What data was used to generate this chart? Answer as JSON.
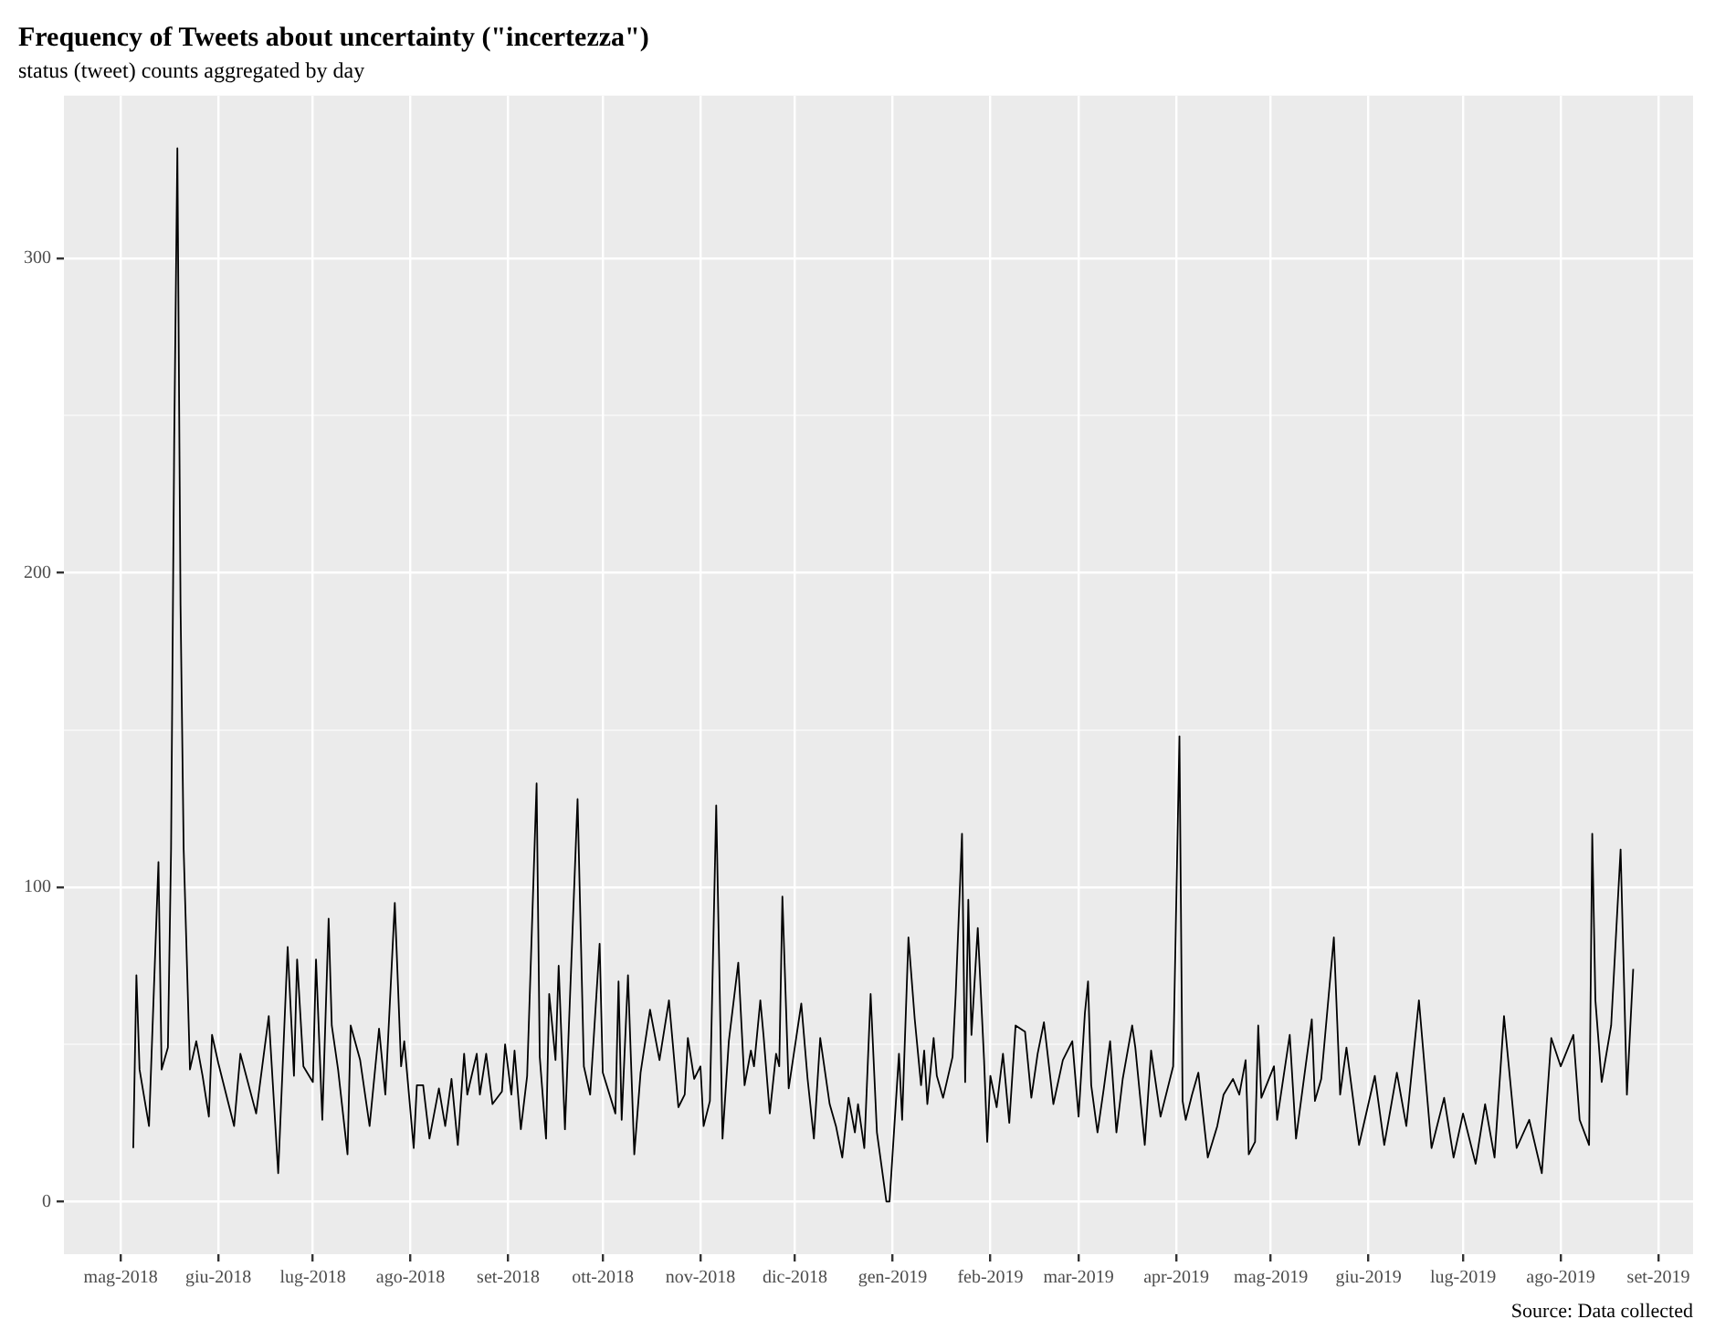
{
  "chart_data": {
    "type": "line",
    "title": "Frequency of Tweets about uncertainty (\"incertezza\")",
    "subtitle": "status (tweet) counts aggregated by day",
    "annotations": [
      "Source: Data collected"
    ],
    "x": [
      "2018-05-05",
      "2018-05-06",
      "2018-05-07",
      "2018-05-10",
      "2018-05-13",
      "2018-05-14",
      "2018-05-16",
      "2018-05-17",
      "2018-05-18",
      "2018-05-19",
      "2018-05-20",
      "2018-05-21",
      "2018-05-23",
      "2018-05-25",
      "2018-05-27",
      "2018-05-29",
      "2018-05-30",
      "2018-06-01",
      "2018-06-06",
      "2018-06-08",
      "2018-06-13",
      "2018-06-17",
      "2018-06-20",
      "2018-06-23",
      "2018-06-25",
      "2018-06-26",
      "2018-06-28",
      "2018-07-01",
      "2018-07-02",
      "2018-07-04",
      "2018-07-06",
      "2018-07-07",
      "2018-07-09",
      "2018-07-12",
      "2018-07-13",
      "2018-07-16",
      "2018-07-19",
      "2018-07-22",
      "2018-07-24",
      "2018-07-27",
      "2018-07-29",
      "2018-07-30",
      "2018-08-02",
      "2018-08-03",
      "2018-08-05",
      "2018-08-07",
      "2018-08-10",
      "2018-08-12",
      "2018-08-14",
      "2018-08-16",
      "2018-08-18",
      "2018-08-19",
      "2018-08-22",
      "2018-08-23",
      "2018-08-25",
      "2018-08-27",
      "2018-08-30",
      "2018-08-31",
      "2018-09-02",
      "2018-09-03",
      "2018-09-05",
      "2018-09-07",
      "2018-09-10",
      "2018-09-11",
      "2018-09-13",
      "2018-09-14",
      "2018-09-16",
      "2018-09-17",
      "2018-09-19",
      "2018-09-23",
      "2018-09-25",
      "2018-09-27",
      "2018-09-30",
      "2018-10-01",
      "2018-10-05",
      "2018-10-06",
      "2018-10-07",
      "2018-10-09",
      "2018-10-11",
      "2018-10-13",
      "2018-10-16",
      "2018-10-19",
      "2018-10-22",
      "2018-10-25",
      "2018-10-27",
      "2018-10-28",
      "2018-10-30",
      "2018-11-01",
      "2018-11-02",
      "2018-11-04",
      "2018-11-06",
      "2018-11-08",
      "2018-11-10",
      "2018-11-13",
      "2018-11-15",
      "2018-11-17",
      "2018-11-18",
      "2018-11-20",
      "2018-11-21",
      "2018-11-23",
      "2018-11-25",
      "2018-11-26",
      "2018-11-27",
      "2018-11-29",
      "2018-12-03",
      "2018-12-05",
      "2018-12-07",
      "2018-12-09",
      "2018-12-12",
      "2018-12-14",
      "2018-12-16",
      "2018-12-18",
      "2018-12-20",
      "2018-12-21",
      "2018-12-23",
      "2018-12-25",
      "2018-12-27",
      "2018-12-30",
      "2018-12-31",
      "2019-01-03",
      "2019-01-04",
      "2019-01-06",
      "2019-01-08",
      "2019-01-10",
      "2019-01-11",
      "2019-01-12",
      "2019-01-14",
      "2019-01-15",
      "2019-01-17",
      "2019-01-20",
      "2019-01-21",
      "2019-01-23",
      "2019-01-24",
      "2019-01-25",
      "2019-01-26",
      "2019-01-28",
      "2019-01-30",
      "2019-01-31",
      "2019-02-01",
      "2019-02-03",
      "2019-02-05",
      "2019-02-07",
      "2019-02-09",
      "2019-02-12",
      "2019-02-14",
      "2019-02-16",
      "2019-02-18",
      "2019-02-21",
      "2019-02-24",
      "2019-02-27",
      "2019-03-01",
      "2019-03-03",
      "2019-03-04",
      "2019-03-05",
      "2019-03-07",
      "2019-03-09",
      "2019-03-11",
      "2019-03-13",
      "2019-03-15",
      "2019-03-18",
      "2019-03-19",
      "2019-03-22",
      "2019-03-24",
      "2019-03-27",
      "2019-03-31",
      "2019-04-02",
      "2019-04-03",
      "2019-04-04",
      "2019-04-06",
      "2019-04-08",
      "2019-04-11",
      "2019-04-14",
      "2019-04-16",
      "2019-04-19",
      "2019-04-21",
      "2019-04-23",
      "2019-04-24",
      "2019-04-26",
      "2019-04-27",
      "2019-04-28",
      "2019-05-02",
      "2019-05-03",
      "2019-05-07",
      "2019-05-09",
      "2019-05-14",
      "2019-05-15",
      "2019-05-17",
      "2019-05-21",
      "2019-05-23",
      "2019-05-25",
      "2019-05-29",
      "2019-06-03",
      "2019-06-06",
      "2019-06-10",
      "2019-06-13",
      "2019-06-17",
      "2019-06-21",
      "2019-06-25",
      "2019-06-28",
      "2019-07-01",
      "2019-07-05",
      "2019-07-08",
      "2019-07-11",
      "2019-07-14",
      "2019-07-18",
      "2019-07-22",
      "2019-07-26",
      "2019-07-29",
      "2019-08-01",
      "2019-08-05",
      "2019-08-07",
      "2019-08-10",
      "2019-08-11",
      "2019-08-12",
      "2019-08-14",
      "2019-08-17",
      "2019-08-20",
      "2019-08-22",
      "2019-08-24"
    ],
    "series": [
      {
        "color": "#000000",
        "values": [
          17,
          72,
          42,
          24,
          108,
          42,
          49,
          112,
          242,
          335,
          190,
          112,
          42,
          51,
          40,
          27,
          53,
          44,
          24,
          47,
          28,
          59,
          9,
          81,
          40,
          77,
          43,
          38,
          77,
          26,
          90,
          56,
          42,
          15,
          56,
          45,
          24,
          55,
          34,
          95,
          43,
          51,
          17,
          37,
          37,
          20,
          36,
          24,
          39,
          18,
          47,
          34,
          47,
          34,
          47,
          31,
          35,
          50,
          34,
          48,
          23,
          40,
          133,
          46,
          20,
          66,
          45,
          75,
          23,
          128,
          43,
          34,
          82,
          41,
          28,
          70,
          26,
          72,
          15,
          41,
          61,
          45,
          64,
          30,
          34,
          52,
          39,
          43,
          24,
          32,
          126,
          20,
          51,
          76,
          37,
          48,
          43,
          64,
          53,
          28,
          47,
          43,
          97,
          36,
          63,
          39,
          20,
          52,
          31,
          24,
          14,
          33,
          22,
          31,
          17,
          66,
          22,
          0,
          0,
          47,
          26,
          84,
          58,
          37,
          48,
          31,
          52,
          40,
          33,
          46,
          66,
          117,
          38,
          96,
          53,
          87,
          45,
          19,
          40,
          30,
          47,
          25,
          56,
          54,
          33,
          47,
          57,
          31,
          45,
          51,
          27,
          60,
          70,
          37,
          22,
          36,
          51,
          22,
          39,
          56,
          49,
          18,
          48,
          27,
          43,
          148,
          32,
          26,
          34,
          41,
          14,
          24,
          34,
          39,
          34,
          45,
          15,
          19,
          56,
          33,
          43,
          26,
          53,
          20,
          58,
          32,
          39,
          84,
          34,
          49,
          18,
          40,
          18,
          41,
          24,
          64,
          17,
          33,
          14,
          28,
          12,
          31,
          14,
          59,
          17,
          26,
          9,
          52,
          43,
          53,
          26,
          18,
          117,
          64,
          38,
          56,
          112,
          34,
          74
        ]
      }
    ],
    "xlim": [
      "2018-04-13",
      "2019-09-12"
    ],
    "xticks": [
      {
        "value": "2018-05-01",
        "label": "mag-2018"
      },
      {
        "value": "2018-06-01",
        "label": "giu-2018"
      },
      {
        "value": "2018-07-01",
        "label": "lug-2018"
      },
      {
        "value": "2018-08-01",
        "label": "ago-2018"
      },
      {
        "value": "2018-09-01",
        "label": "set-2018"
      },
      {
        "value": "2018-10-01",
        "label": "ott-2018"
      },
      {
        "value": "2018-11-01",
        "label": "nov-2018"
      },
      {
        "value": "2018-12-01",
        "label": "dic-2018"
      },
      {
        "value": "2019-01-01",
        "label": "gen-2019"
      },
      {
        "value": "2019-02-01",
        "label": "feb-2019"
      },
      {
        "value": "2019-03-01",
        "label": "mar-2019"
      },
      {
        "value": "2019-04-01",
        "label": "apr-2019"
      },
      {
        "value": "2019-05-01",
        "label": "mag-2019"
      },
      {
        "value": "2019-06-01",
        "label": "giu-2019"
      },
      {
        "value": "2019-07-01",
        "label": "lug-2019"
      },
      {
        "value": "2019-08-01",
        "label": "ago-2019"
      },
      {
        "value": "2019-09-01",
        "label": "set-2019"
      }
    ],
    "ylim": [
      -16.75,
      351.75
    ],
    "yticks": [
      0,
      {
        "value": 50,
        "label": null
      },
      100,
      {
        "value": 150,
        "label": null
      },
      200,
      {
        "value": 250,
        "label": null
      },
      300
    ],
    "grid": true,
    "marker": "none",
    "line_style": "solid",
    "legend": false
  }
}
